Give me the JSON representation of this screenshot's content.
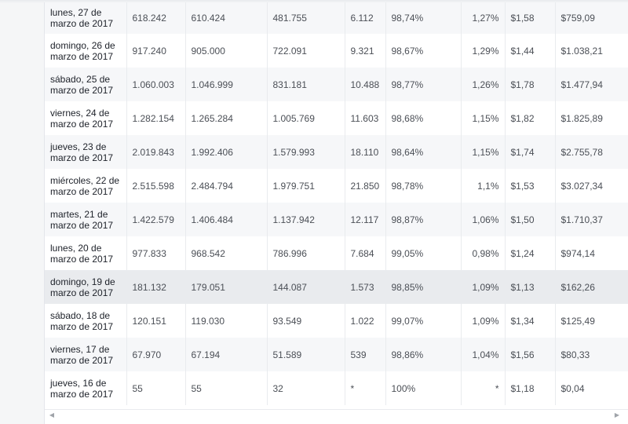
{
  "table": {
    "rows": [
      [
        "lunes, 27 de marzo de 2017",
        "618.242",
        "610.424",
        "481.755",
        "6.112",
        "98,74%",
        "1,27%",
        "$1,58",
        "$759,09"
      ],
      [
        "domingo, 26 de marzo de 2017",
        "917.240",
        "905.000",
        "722.091",
        "9.321",
        "98,67%",
        "1,29%",
        "$1,44",
        "$1.038,21"
      ],
      [
        "sábado, 25 de marzo de 2017",
        "1.060.003",
        "1.046.999",
        "831.181",
        "10.488",
        "98,77%",
        "1,26%",
        "$1,78",
        "$1.477,94"
      ],
      [
        "viernes, 24 de marzo de 2017",
        "1.282.154",
        "1.265.284",
        "1.005.769",
        "11.603",
        "98,68%",
        "1,15%",
        "$1,82",
        "$1.825,89"
      ],
      [
        "jueves, 23 de marzo de 2017",
        "2.019.843",
        "1.992.406",
        "1.579.993",
        "18.110",
        "98,64%",
        "1,15%",
        "$1,74",
        "$2.755,78"
      ],
      [
        "miércoles, 22 de marzo de 2017",
        "2.515.598",
        "2.484.794",
        "1.979.751",
        "21.850",
        "98,78%",
        "1,1%",
        "$1,53",
        "$3.027,34"
      ],
      [
        "martes, 21 de marzo de 2017",
        "1.422.579",
        "1.406.484",
        "1.137.942",
        "12.117",
        "98,87%",
        "1,06%",
        "$1,50",
        "$1.710,37"
      ],
      [
        "lunes, 20 de marzo de 2017",
        "977.833",
        "968.542",
        "786.996",
        "7.684",
        "99,05%",
        "0,98%",
        "$1,24",
        "$974,14"
      ],
      [
        "domingo, 19 de marzo de 2017",
        "181.132",
        "179.051",
        "144.087",
        "1.573",
        "98,85%",
        "1,09%",
        "$1,13",
        "$162,26"
      ],
      [
        "sábado, 18 de marzo de 2017",
        "120.151",
        "119.030",
        "93.549",
        "1.022",
        "99,07%",
        "1,09%",
        "$1,34",
        "$125,49"
      ],
      [
        "viernes, 17 de marzo de 2017",
        "67.970",
        "67.194",
        "51.589",
        "539",
        "98,86%",
        "1,04%",
        "$1,56",
        "$80,33"
      ],
      [
        "jueves, 16 de marzo de 2017",
        "55",
        "55",
        "32",
        "*",
        "100%",
        "*",
        "$1,18",
        "$0,04"
      ]
    ],
    "highlighted_row": 8
  },
  "scrollbar": {
    "left_arrow": "◀",
    "right_arrow": "▶"
  },
  "colors": {
    "row_stripe": "#f6f7f9",
    "row_hover": "#e9ebee",
    "text": "#4b4f56"
  }
}
